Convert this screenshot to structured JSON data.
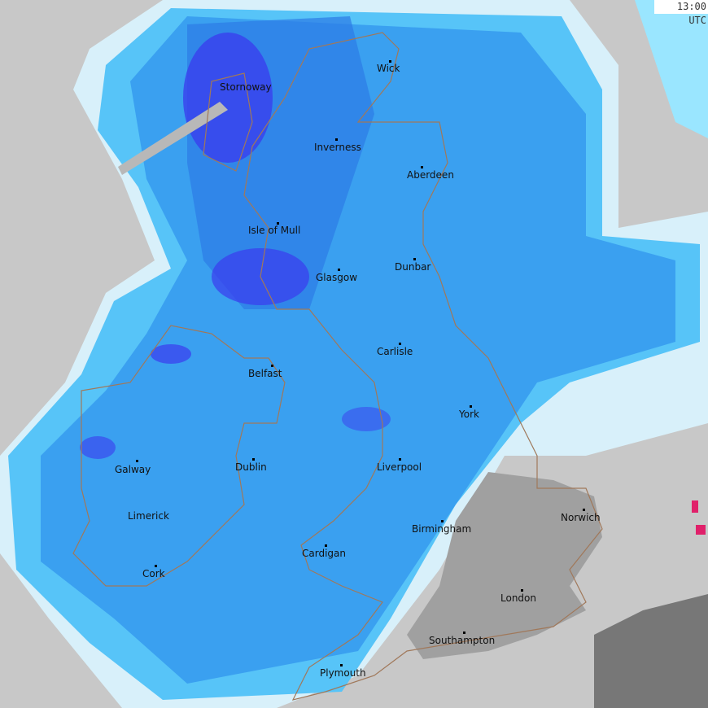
{
  "timestamp": "13:00 UTC",
  "colors": {
    "background": "#c8c8c8",
    "no_rain_land": "#a0a0a0",
    "light_rain": "#8fe0ff",
    "rain": "#3aa0f0",
    "moderate_rain": "#2c7ae6",
    "heavy_rain": "#3a3aee",
    "intense": "#e0206a",
    "coastline": "#a0785a"
  },
  "cities": [
    {
      "name": "Stornoway"
    },
    {
      "name": "Wick"
    },
    {
      "name": "Inverness"
    },
    {
      "name": "Aberdeen"
    },
    {
      "name": "Isle of Mull"
    },
    {
      "name": "Dunbar"
    },
    {
      "name": "Glasgow"
    },
    {
      "name": "Carlisle"
    },
    {
      "name": "Belfast"
    },
    {
      "name": "York"
    },
    {
      "name": "Galway"
    },
    {
      "name": "Dublin"
    },
    {
      "name": "Liverpool"
    },
    {
      "name": "Limerick"
    },
    {
      "name": "Norwich"
    },
    {
      "name": "Birmingham"
    },
    {
      "name": "Cardigan"
    },
    {
      "name": "Cork"
    },
    {
      "name": "London"
    },
    {
      "name": "Southampton"
    },
    {
      "name": "Plymouth"
    }
  ]
}
